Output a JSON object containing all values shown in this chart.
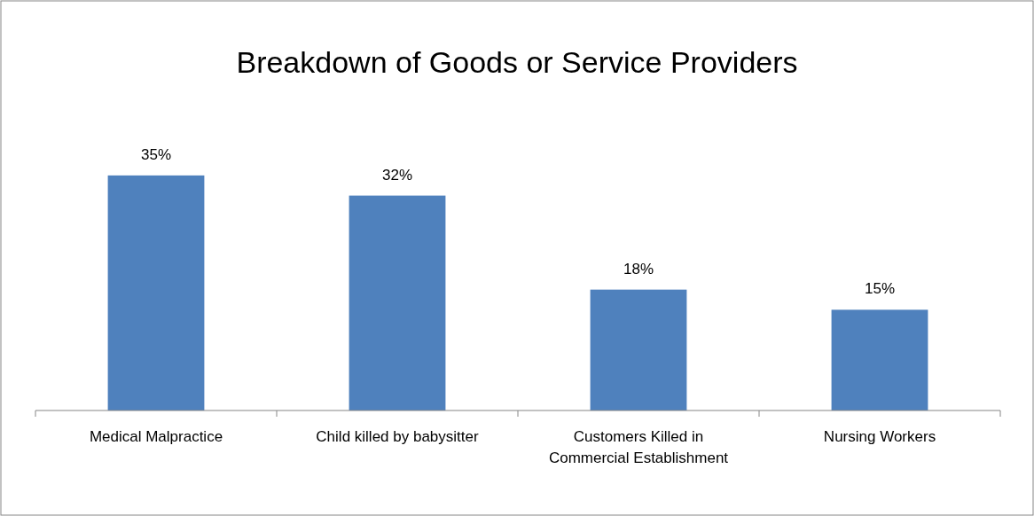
{
  "chart_data": {
    "type": "bar",
    "title": "Breakdown of Goods or Service Providers",
    "categories": [
      "Medical Malpractice",
      "Child killed by babysitter",
      "Customers Killed in Commercial Establishment",
      "Nursing Workers"
    ],
    "values": [
      35,
      32,
      18,
      15
    ],
    "value_labels": [
      "35%",
      "32%",
      "18%",
      "15%"
    ],
    "color": "#4f81bd",
    "tick_labels": "x"
  }
}
